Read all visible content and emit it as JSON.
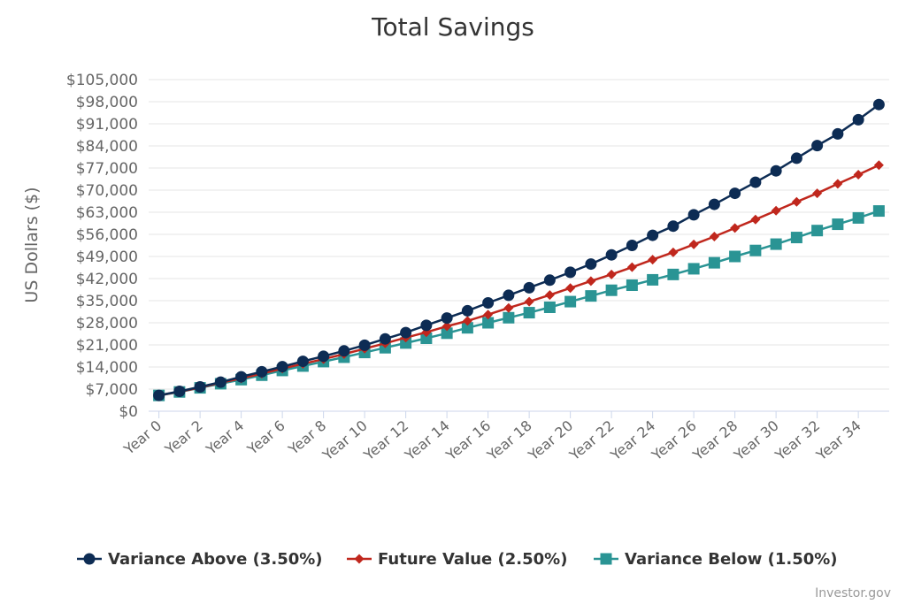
{
  "chart_data": {
    "type": "line",
    "title": "Total Savings",
    "xlabel": "",
    "ylabel": "US Dollars ($)",
    "ylim": [
      0,
      105000
    ],
    "yticks": [
      "$0",
      "$7,000",
      "$14,000",
      "$21,000",
      "$28,000",
      "$35,000",
      "$42,000",
      "$49,000",
      "$56,000",
      "$63,000",
      "$70,000",
      "$77,000",
      "$84,000",
      "$91,000",
      "$98,000",
      "$105,000"
    ],
    "categories": [
      "Year 0",
      "Year 1",
      "Year 2",
      "Year 3",
      "Year 4",
      "Year 5",
      "Year 6",
      "Year 7",
      "Year 8",
      "Year 9",
      "Year 10",
      "Year 11",
      "Year 12",
      "Year 13",
      "Year 14",
      "Year 15",
      "Year 16",
      "Year 17",
      "Year 18",
      "Year 19",
      "Year 20",
      "Year 21",
      "Year 22",
      "Year 23",
      "Year 24",
      "Year 25",
      "Year 26",
      "Year 27",
      "Year 28",
      "Year 29",
      "Year 30",
      "Year 31",
      "Year 32",
      "Year 33",
      "Year 34",
      "Year 35"
    ],
    "x_tick_labels_shown": [
      "Year 0",
      "Year 2",
      "Year 4",
      "Year 6",
      "Year 8",
      "Year 10",
      "Year 12",
      "Year 14",
      "Year 16",
      "Year 18",
      "Year 20",
      "Year 22",
      "Year 24",
      "Year 26",
      "Year 28",
      "Year 30",
      "Year 32",
      "Year 34"
    ],
    "grid": true,
    "legend_position": "bottom-center",
    "series": [
      {
        "name": "Variance Above (3.50%)",
        "color": "#0d2c54",
        "marker": "circle",
        "values": [
          5000,
          6300,
          7700,
          9200,
          10900,
          12500,
          14100,
          15800,
          17400,
          19100,
          20900,
          22900,
          24900,
          27200,
          29500,
          31800,
          34300,
          36700,
          39100,
          41500,
          44000,
          46600,
          49500,
          52500,
          55700,
          58600,
          62200,
          65500,
          69000,
          72500,
          76100,
          80100,
          84100,
          87800,
          92300,
          97100
        ]
      },
      {
        "name": "Future Value (2.50%)",
        "color": "#c0271d",
        "marker": "diamond",
        "values": [
          5000,
          6200,
          7500,
          9000,
          10400,
          11900,
          13500,
          15000,
          16500,
          18100,
          19800,
          21500,
          23300,
          25000,
          26900,
          28600,
          30600,
          32700,
          34700,
          36800,
          39000,
          41200,
          43300,
          45600,
          48000,
          50300,
          52800,
          55300,
          58000,
          60700,
          63500,
          66300,
          69000,
          72000,
          74900,
          77900
        ]
      },
      {
        "name": "Variance Below (1.50%)",
        "color": "#2a9494",
        "marker": "square",
        "values": [
          5000,
          6100,
          7400,
          8700,
          10000,
          11400,
          12900,
          14300,
          15700,
          17100,
          18600,
          20100,
          21600,
          23100,
          24700,
          26400,
          28000,
          29600,
          31200,
          32900,
          34700,
          36500,
          38300,
          39900,
          41600,
          43300,
          45100,
          47000,
          49000,
          50900,
          52900,
          55000,
          57200,
          59200,
          61200,
          63400
        ]
      }
    ]
  },
  "credit": "Investor.gov"
}
